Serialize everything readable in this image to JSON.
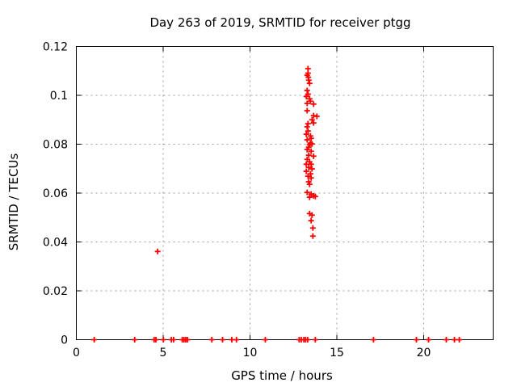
{
  "window": {
    "background": "#ffffff"
  },
  "chart_data": {
    "type": "scatter",
    "title": "Day 263 of 2019, SRMTID for receiver ptgg",
    "xlabel": "GPS time / hours",
    "ylabel": "SRMTID / TECUs",
    "xlim": [
      0,
      24
    ],
    "ylim": [
      0,
      0.12
    ],
    "xticks": [
      0,
      5,
      10,
      15,
      20
    ],
    "xtick_labels": [
      "0",
      "5",
      "10",
      "15",
      "20"
    ],
    "yticks": [
      0,
      0.02,
      0.04,
      0.06,
      0.08,
      0.1,
      0.12
    ],
    "ytick_labels": [
      "0",
      "0.02",
      "0.04",
      "0.06",
      "0.08",
      "0.1",
      "0.12"
    ],
    "grid": true,
    "legend": false,
    "marker": "plus",
    "marker_color": "#ff0000",
    "grid_color": "#9e9e9e",
    "axis_color": "#000000",
    "series": [
      {
        "name": "SRMTID",
        "points": [
          [
            13.34,
            0.1109
          ],
          [
            13.34,
            0.1091
          ],
          [
            13.29,
            0.1082
          ],
          [
            13.36,
            0.1074
          ],
          [
            13.38,
            0.1062
          ],
          [
            13.43,
            0.1049
          ],
          [
            13.29,
            0.102
          ],
          [
            13.34,
            0.1005
          ],
          [
            13.24,
            0.0995
          ],
          [
            13.43,
            0.0986
          ],
          [
            13.48,
            0.0976
          ],
          [
            13.29,
            0.0967
          ],
          [
            13.66,
            0.0964
          ],
          [
            13.29,
            0.0937
          ],
          [
            13.66,
            0.0917
          ],
          [
            13.85,
            0.0914
          ],
          [
            13.57,
            0.09
          ],
          [
            13.66,
            0.0887
          ],
          [
            13.34,
            0.0884
          ],
          [
            13.29,
            0.0871
          ],
          [
            13.34,
            0.0854
          ],
          [
            13.24,
            0.0841
          ],
          [
            13.48,
            0.0834
          ],
          [
            13.52,
            0.0824
          ],
          [
            13.29,
            0.0818
          ],
          [
            13.48,
            0.0804
          ],
          [
            13.57,
            0.0801
          ],
          [
            13.43,
            0.0798
          ],
          [
            13.38,
            0.0788
          ],
          [
            13.29,
            0.0778
          ],
          [
            13.52,
            0.0771
          ],
          [
            13.38,
            0.0755
          ],
          [
            13.66,
            0.0751
          ],
          [
            13.29,
            0.0738
          ],
          [
            13.43,
            0.0728
          ],
          [
            13.24,
            0.0718
          ],
          [
            13.52,
            0.0718
          ],
          [
            13.38,
            0.0705
          ],
          [
            13.57,
            0.0699
          ],
          [
            13.24,
            0.0689
          ],
          [
            13.48,
            0.0679
          ],
          [
            13.34,
            0.0669
          ],
          [
            13.52,
            0.0662
          ],
          [
            13.38,
            0.0646
          ],
          [
            13.43,
            0.0636
          ],
          [
            13.29,
            0.0603
          ],
          [
            13.52,
            0.0596
          ],
          [
            13.66,
            0.0589
          ],
          [
            13.76,
            0.0586
          ],
          [
            13.43,
            0.0583
          ],
          [
            13.43,
            0.0516
          ],
          [
            13.57,
            0.051
          ],
          [
            13.52,
            0.0487
          ],
          [
            13.62,
            0.0457
          ],
          [
            13.62,
            0.0424
          ],
          [
            4.68,
            0.0361
          ],
          [
            1.03,
            0
          ],
          [
            3.36,
            0
          ],
          [
            4.48,
            0
          ],
          [
            4.58,
            0
          ],
          [
            5.01,
            0
          ],
          [
            5.47,
            0
          ],
          [
            5.6,
            0
          ],
          [
            6.1,
            0
          ],
          [
            6.2,
            0
          ],
          [
            6.3,
            0
          ],
          [
            6.4,
            0
          ],
          [
            7.8,
            0
          ],
          [
            8.42,
            0
          ],
          [
            8.95,
            0
          ],
          [
            9.22,
            0
          ],
          [
            10.88,
            0
          ],
          [
            12.83,
            0
          ],
          [
            12.95,
            0
          ],
          [
            13.1,
            0
          ],
          [
            13.2,
            0
          ],
          [
            13.32,
            0
          ],
          [
            13.76,
            0
          ],
          [
            17.11,
            0
          ],
          [
            19.58,
            0
          ],
          [
            20.28,
            0
          ],
          [
            21.3,
            0
          ],
          [
            21.77,
            0
          ],
          [
            22.05,
            0
          ]
        ]
      }
    ]
  }
}
